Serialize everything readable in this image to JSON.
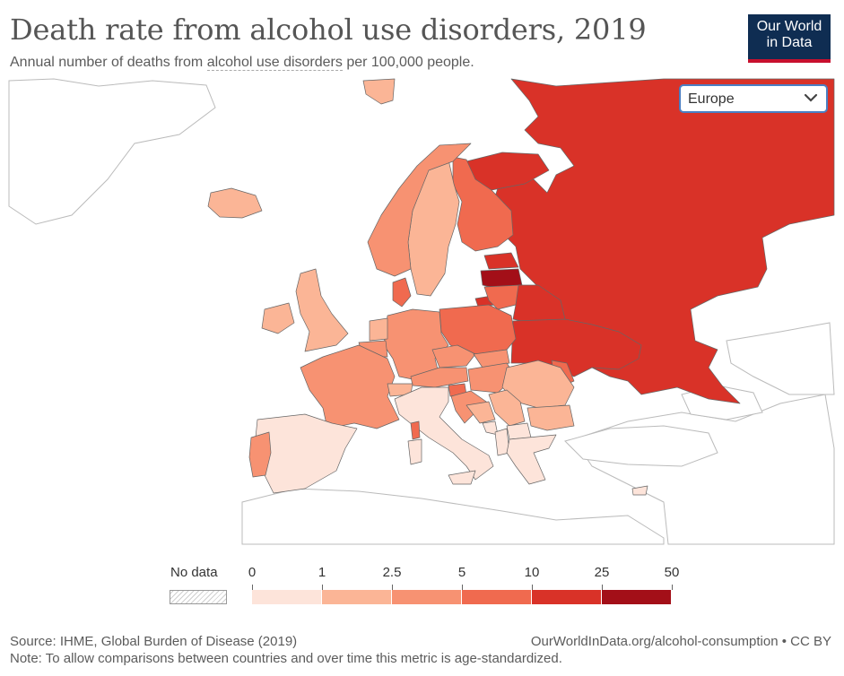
{
  "title": "Death rate from alcohol use disorders, 2019",
  "subtitle_prefix": "Annual number of deaths from ",
  "subtitle_link": "alcohol use disorders",
  "subtitle_suffix": " per 100,000 people.",
  "logo": {
    "line1": "Our World",
    "line2": "in Data"
  },
  "region_select": {
    "value": "Europe"
  },
  "legend": {
    "no_data_label": "No data",
    "bins": [
      {
        "from": "0",
        "to": "1",
        "color": "#fde4da"
      },
      {
        "from": "1",
        "to": "2.5",
        "color": "#fbb596"
      },
      {
        "from": "2.5",
        "to": "5",
        "color": "#f79272"
      },
      {
        "from": "5",
        "to": "10",
        "color": "#f06a4f"
      },
      {
        "from": "10",
        "to": "25",
        "color": "#d93228"
      },
      {
        "from": "25",
        "to": "50",
        "color": "#a30f18"
      }
    ],
    "tick_labels": [
      "0",
      "1",
      "2.5",
      "5",
      "10",
      "25",
      "50"
    ]
  },
  "colors": {
    "no_data_fill": "#ffffff",
    "border": "#bbbbbb",
    "accent": "#c8102e",
    "logo_bg": "#0f2d52"
  },
  "map_data": {
    "region": "Europe",
    "year": "2019",
    "bins_by_country": {
      "Russia": "10-25",
      "Belarus": "10-25",
      "Estonia": "10-25",
      "Latvia": "25-50",
      "Lithuania": "5-10",
      "Ukraine": "10-25",
      "Moldova": "5-10",
      "Finland": "5-10",
      "Sweden": "1-2.5",
      "Norway": "2.5-5",
      "Denmark": "5-10",
      "Poland": "5-10",
      "Germany": "2.5-5",
      "Czechia": "2.5-5",
      "Slovakia": "2.5-5",
      "Hungary": "2.5-5",
      "Austria": "2.5-5",
      "Slovenia": "5-10",
      "Croatia": "2.5-5",
      "Romania": "1-2.5",
      "Bulgaria": "1-2.5",
      "France": "2.5-5",
      "Belgium": "2.5-5",
      "Netherlands": "1-2.5",
      "United Kingdom": "1-2.5",
      "Ireland": "1-2.5",
      "Iceland": "1-2.5",
      "Portugal": "2.5-5",
      "Spain": "0-1",
      "Italy": "0-1",
      "Switzerland": "1-2.5",
      "Greece": "0-1",
      "Serbia": "1-2.5",
      "Bosnia and Herzegovina": "1-2.5",
      "Montenegro": "0-1",
      "Albania": "0-1",
      "North Macedonia": "0-1",
      "Cyprus": "0-1",
      "Malta": "0-1"
    }
  },
  "source": "Source: IHME, Global Burden of Disease (2019)",
  "note": "Note: To allow comparisons between countries and over time this metric is age-standardized.",
  "url_credit": "OurWorldInData.org/alcohol-consumption • CC BY"
}
